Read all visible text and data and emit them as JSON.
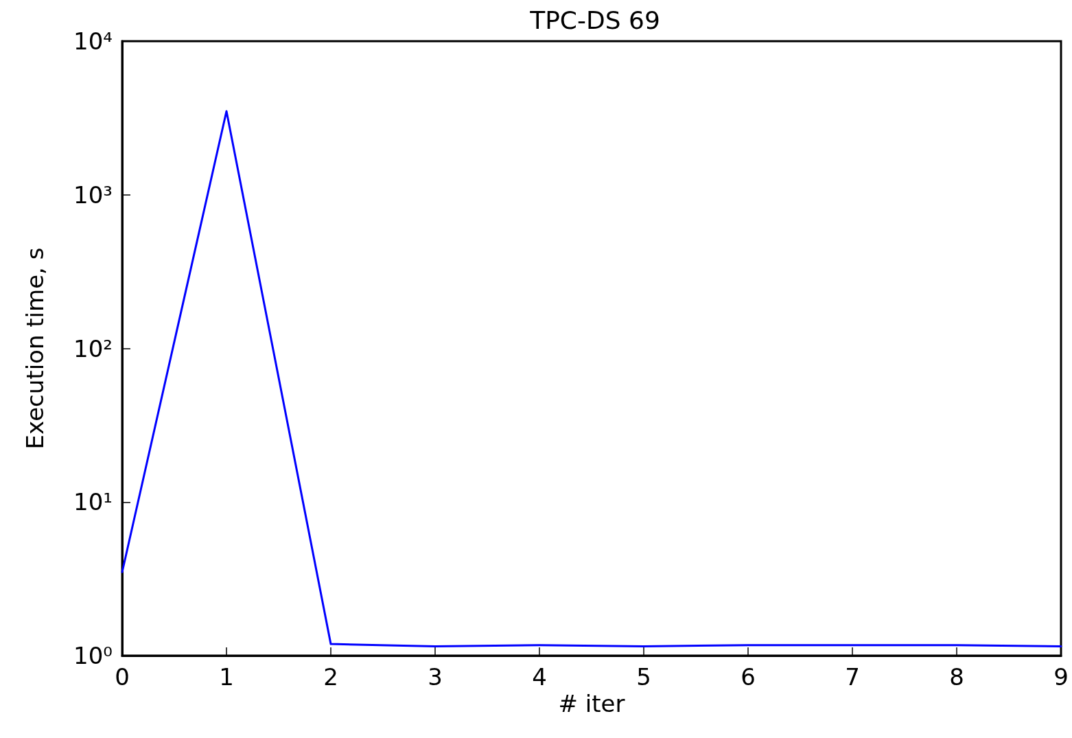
{
  "chart_data": {
    "type": "line",
    "title": "TPC-DS 69",
    "xlabel": "# iter",
    "ylabel": "Execution time, s",
    "x": [
      0,
      1,
      2,
      3,
      4,
      5,
      6,
      7,
      8,
      9
    ],
    "series": [
      {
        "color": "#0000ff",
        "values": [
          3.5,
          3500,
          1.19,
          1.15,
          1.17,
          1.15,
          1.17,
          1.17,
          1.17,
          1.15
        ]
      }
    ],
    "xlim": [
      0,
      9
    ],
    "xticks": [
      0,
      1,
      2,
      3,
      4,
      5,
      6,
      7,
      8,
      9
    ],
    "ylim": [
      1,
      10000
    ],
    "yticks": [
      {
        "value": 1,
        "label": "10⁰"
      },
      {
        "value": 10,
        "label": "10¹"
      },
      {
        "value": 100,
        "label": "10²"
      },
      {
        "value": 1000,
        "label": "10³"
      },
      {
        "value": 10000,
        "label": "10⁴"
      }
    ],
    "log": "y",
    "grid": false,
    "marker": "none",
    "line_style": "solid"
  }
}
